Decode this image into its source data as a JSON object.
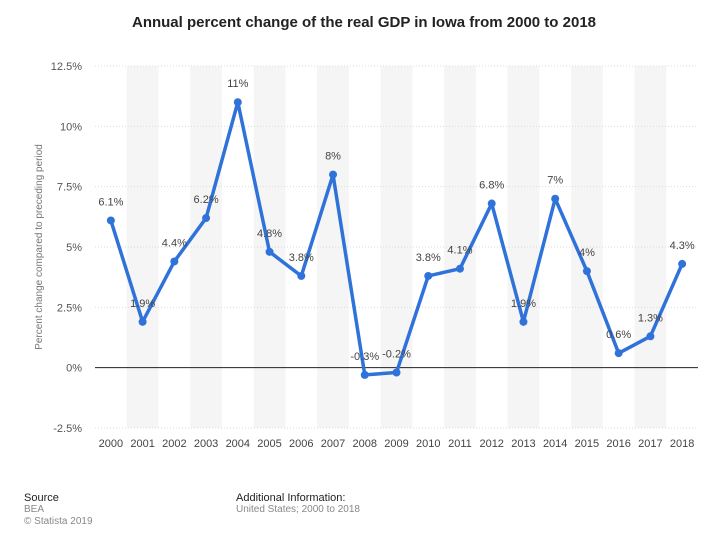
{
  "chart_data": {
    "type": "line",
    "title": "Annual percent change of the real GDP in Iowa from 2000 to 2018",
    "ylabel": "Percent change compared to preceding period",
    "xlabel": "",
    "categories": [
      "2000",
      "2001",
      "2002",
      "2003",
      "2004",
      "2005",
      "2006",
      "2007",
      "2008",
      "2009",
      "2010",
      "2011",
      "2012",
      "2013",
      "2014",
      "2015",
      "2016",
      "2017",
      "2018"
    ],
    "values": [
      6.1,
      1.9,
      4.4,
      6.2,
      11,
      4.8,
      3.8,
      8,
      -0.3,
      -0.2,
      3.8,
      4.1,
      6.8,
      1.9,
      7,
      4,
      0.6,
      1.3,
      4.3
    ],
    "data_labels": [
      "6.1%",
      "1.9%",
      "4.4%",
      "6.2%",
      "11%",
      "4.8%",
      "3.8%",
      "8%",
      "-0.3%",
      "-0.2%",
      "3.8%",
      "4.1%",
      "6.8%",
      "1.9%",
      "7%",
      "4%",
      "0.6%",
      "1.3%",
      "4.3%"
    ],
    "yticks": [
      -2.5,
      0,
      2.5,
      5,
      7.5,
      10,
      12.5
    ],
    "ytick_labels": [
      "-2.5%",
      "0%",
      "2.5%",
      "5%",
      "7.5%",
      "10%",
      "12.5%"
    ],
    "ylim": [
      -2.5,
      12.5
    ],
    "grid": true,
    "line_color": "#2f72d9",
    "band_color": "#f5f5f5"
  },
  "footer": {
    "source_heading": "Source",
    "source_name": "BEA",
    "copyright": "© Statista 2019",
    "info_heading": "Additional Information:",
    "info_text": "United States; 2000 to 2018"
  }
}
